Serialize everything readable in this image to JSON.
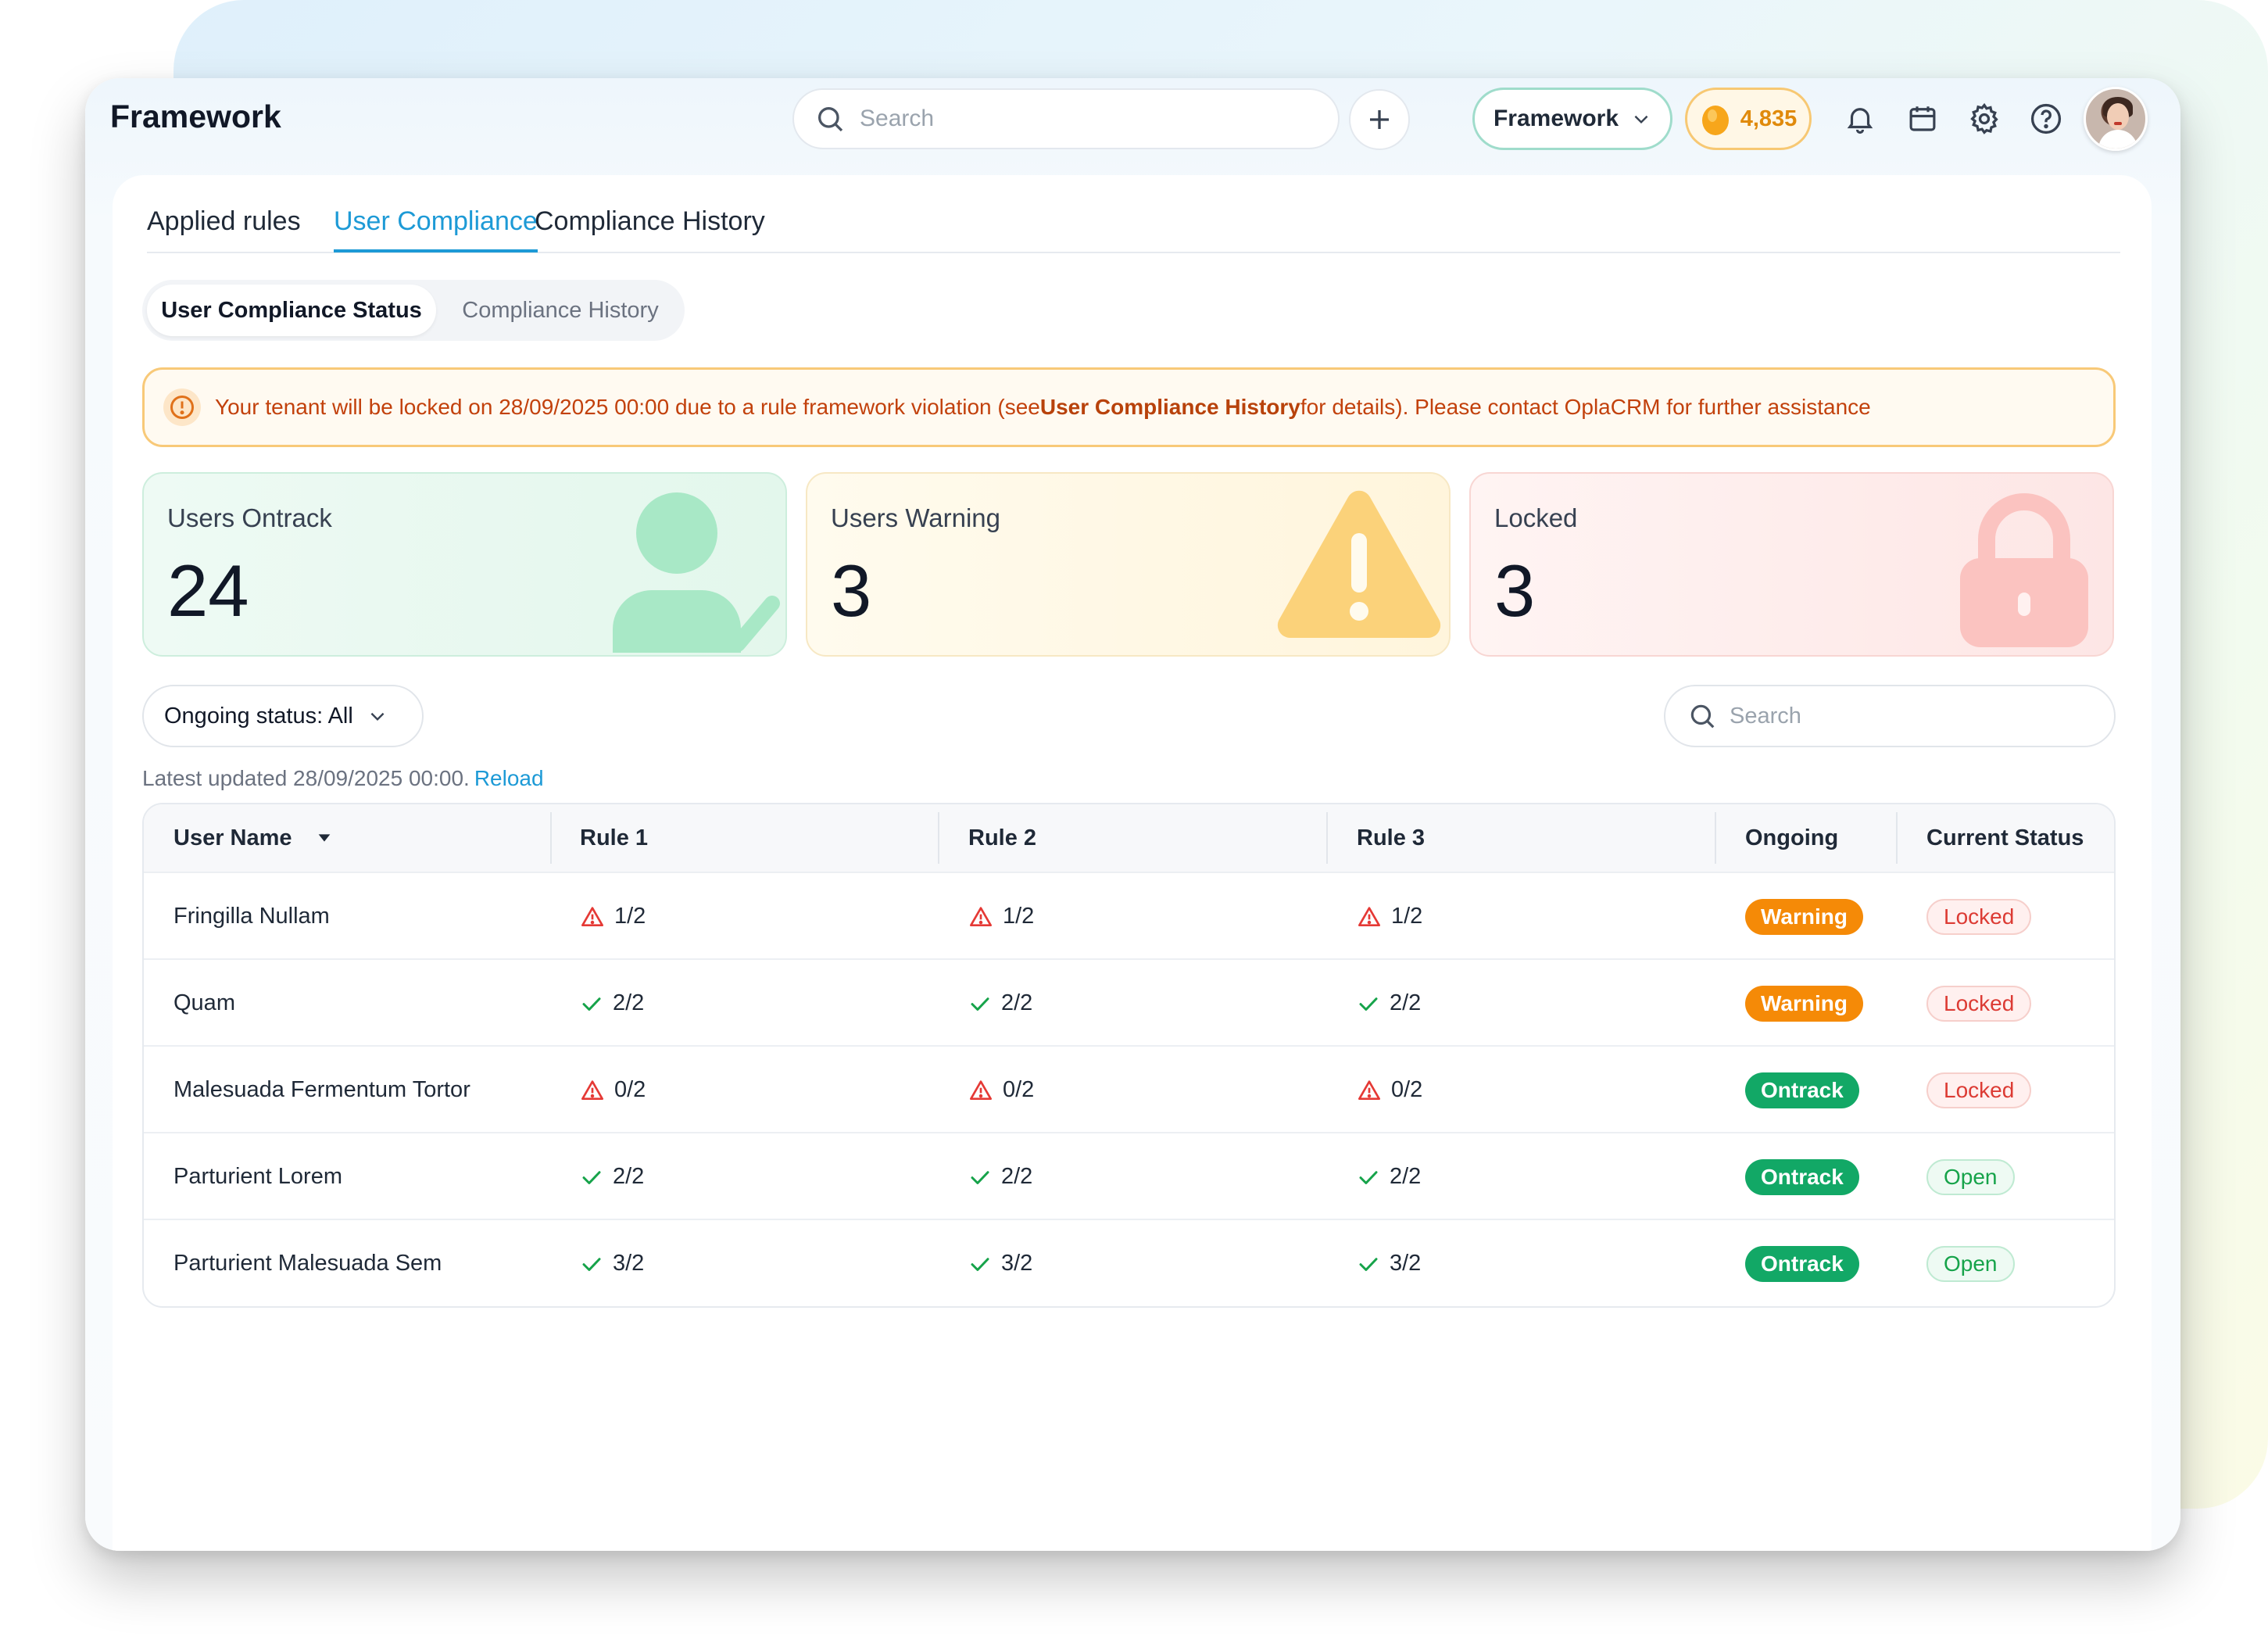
{
  "app": {
    "title": "Framework",
    "search_placeholder": "Search",
    "framework_select": "Framework",
    "coins": "4,835"
  },
  "tabs": [
    {
      "label": "Applied rules",
      "active": false
    },
    {
      "label": "User Compliance",
      "active": true
    },
    {
      "label": "Compliance History",
      "active": false
    }
  ],
  "subtabs": [
    {
      "label": "User Compliance Status",
      "active": true
    },
    {
      "label": "Compliance History",
      "active": false
    }
  ],
  "alert": {
    "prefix": "Your tenant will be locked on 28/09/2025 00:00 due to a rule framework violation (see ",
    "link": "User Compliance History",
    "suffix": " for details). Please contact OplaCRM for further assistance"
  },
  "cards": [
    {
      "label": "Users Ontrack",
      "value": "24",
      "color": "#7dd9a8"
    },
    {
      "label": "Users Warning",
      "value": "3",
      "color": "#f9c95a"
    },
    {
      "label": "Locked",
      "value": "3",
      "color": "#f8a9a6"
    }
  ],
  "filter": {
    "label": "Ongoing status: All"
  },
  "table_search_placeholder": "Search",
  "updated": {
    "text": "Latest updated 28/09/2025 00:00.",
    "reload": "Reload"
  },
  "table": {
    "columns": [
      "User Name",
      "Rule 1",
      "Rule 2",
      "Rule 3",
      "Ongoing",
      "Current Status"
    ],
    "rows": [
      {
        "name": "Fringilla Nullam",
        "rules": [
          {
            "v": "1/2",
            "ok": false
          },
          {
            "v": "1/2",
            "ok": false
          },
          {
            "v": "1/2",
            "ok": false
          }
        ],
        "ongoing": "Warning",
        "ongoing_kind": "warn",
        "status": "Locked",
        "status_kind": "locked"
      },
      {
        "name": "Quam",
        "rules": [
          {
            "v": "2/2",
            "ok": true
          },
          {
            "v": "2/2",
            "ok": true
          },
          {
            "v": "2/2",
            "ok": true
          }
        ],
        "ongoing": "Warning",
        "ongoing_kind": "warn",
        "status": "Locked",
        "status_kind": "locked"
      },
      {
        "name": "Malesuada Fermentum Tortor",
        "rules": [
          {
            "v": "0/2",
            "ok": false
          },
          {
            "v": "0/2",
            "ok": false
          },
          {
            "v": "0/2",
            "ok": false
          }
        ],
        "ongoing": "Ontrack",
        "ongoing_kind": "ok",
        "status": "Locked",
        "status_kind": "locked"
      },
      {
        "name": "Parturient Lorem",
        "rules": [
          {
            "v": "2/2",
            "ok": true
          },
          {
            "v": "2/2",
            "ok": true
          },
          {
            "v": "2/2",
            "ok": true
          }
        ],
        "ongoing": "Ontrack",
        "ongoing_kind": "ok",
        "status": "Open",
        "status_kind": "open"
      },
      {
        "name": "Parturient Malesuada Sem",
        "rules": [
          {
            "v": "3/2",
            "ok": true
          },
          {
            "v": "3/2",
            "ok": true
          },
          {
            "v": "3/2",
            "ok": true
          }
        ],
        "ongoing": "Ontrack",
        "ongoing_kind": "ok",
        "status": "Open",
        "status_kind": "open"
      }
    ]
  }
}
